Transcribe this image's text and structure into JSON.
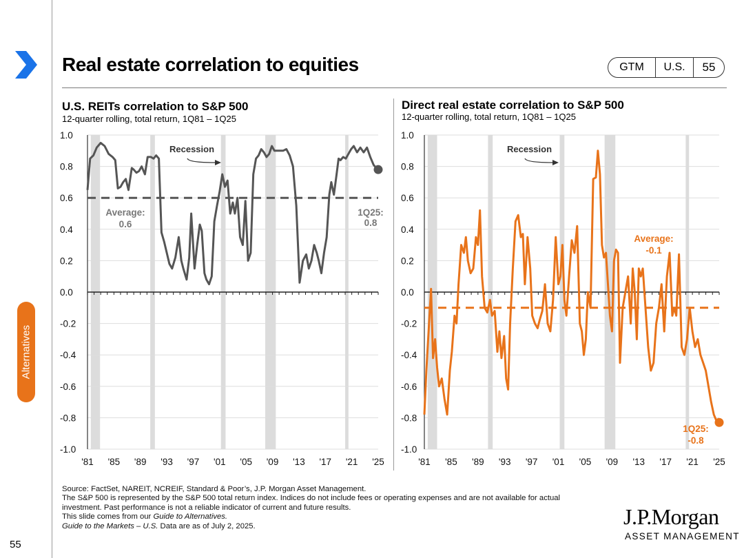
{
  "header": {
    "title": "Real estate correlation to equities",
    "badge": [
      "GTM",
      "U.S.",
      "55"
    ]
  },
  "side_tab": "Alternatives",
  "page_number": "55",
  "colors": {
    "left_line": "#555555",
    "right_line": "#e8731a",
    "recession": "#dcdcdc",
    "accent": "#e8731a"
  },
  "icons": {
    "nav": "chevron-right-icon"
  },
  "chart_data": [
    {
      "type": "line",
      "title": "U.S. REITs correlation to S&P 500",
      "subtitle": "12-quarter rolling, total return, 1Q81 – 1Q25",
      "ylim": [
        -1.0,
        1.0
      ],
      "y_ticks": [
        "1.0",
        "0.8",
        "0.6",
        "0.4",
        "0.2",
        "0.0",
        "-0.2",
        "-0.4",
        "-0.6",
        "-0.8",
        "-1.0"
      ],
      "x_ticks": [
        "'81",
        "'85",
        "'89",
        "'93",
        "'97",
        "'01",
        "'05",
        "'09",
        "'13",
        "'17",
        "'21",
        "'25"
      ],
      "recession_label": "Recession",
      "recessions": [
        [
          1981.5,
          1982.9
        ],
        [
          1990.5,
          1991.2
        ],
        [
          2001.2,
          2001.9
        ],
        [
          2007.9,
          2009.5
        ],
        [
          2020.0,
          2020.5
        ]
      ],
      "average": 0.6,
      "average_label": [
        "Average:",
        "0.6"
      ],
      "end_label": [
        "1Q25:",
        "0.8"
      ],
      "series": [
        {
          "name": "U.S. REITs",
          "color": "#555555",
          "x": [
            1981.0,
            1981.4,
            1981.9,
            1982.4,
            1983.0,
            1983.6,
            1984.2,
            1984.8,
            1985.2,
            1985.6,
            1986.0,
            1986.4,
            1986.8,
            1987.2,
            1987.7,
            1988.0,
            1988.4,
            1988.8,
            1989.2,
            1989.7,
            1990.1,
            1990.6,
            1991.0,
            1991.4,
            1991.8,
            1992.2,
            1992.6,
            1993.0,
            1993.4,
            1993.8,
            1994.3,
            1994.8,
            1995.2,
            1995.5,
            1996.0,
            1996.4,
            1996.7,
            1997.2,
            1997.6,
            1998.0,
            1998.3,
            1998.7,
            1999.0,
            1999.4,
            1999.8,
            2000.2,
            2000.6,
            2001.0,
            2001.4,
            2001.8,
            2002.2,
            2002.6,
            2003.0,
            2003.3,
            2003.7,
            2004.1,
            2004.5,
            2004.9,
            2005.3,
            2005.7,
            2006.1,
            2006.5,
            2006.9,
            2007.3,
            2007.7,
            2008.1,
            2008.5,
            2008.9,
            2009.3,
            2009.7,
            2010.1,
            2010.6,
            2011.1,
            2011.6,
            2012.1,
            2012.6,
            2013.1,
            2013.6,
            2014.1,
            2014.5,
            2014.9,
            2015.3,
            2015.7,
            2016.0,
            2016.4,
            2016.8,
            2017.2,
            2017.6,
            2017.9,
            2018.3,
            2018.7,
            2019.0,
            2019.3,
            2019.7,
            2020.1,
            2020.5,
            2020.9,
            2021.3,
            2021.8,
            2022.3,
            2022.8,
            2023.3,
            2023.8,
            2024.3,
            2024.7,
            2025.0
          ],
          "y": [
            0.65,
            0.85,
            0.87,
            0.92,
            0.95,
            0.93,
            0.88,
            0.86,
            0.84,
            0.66,
            0.67,
            0.7,
            0.72,
            0.65,
            0.79,
            0.78,
            0.76,
            0.77,
            0.8,
            0.75,
            0.86,
            0.86,
            0.85,
            0.87,
            0.85,
            0.38,
            0.32,
            0.25,
            0.18,
            0.15,
            0.22,
            0.35,
            0.2,
            0.15,
            0.08,
            0.22,
            0.5,
            0.15,
            0.3,
            0.43,
            0.39,
            0.12,
            0.08,
            0.05,
            0.1,
            0.45,
            0.55,
            0.64,
            0.75,
            0.67,
            0.71,
            0.5,
            0.57,
            0.5,
            0.6,
            0.35,
            0.3,
            0.58,
            0.2,
            0.25,
            0.75,
            0.85,
            0.87,
            0.91,
            0.89,
            0.86,
            0.88,
            0.93,
            0.9,
            0.9,
            0.9,
            0.9,
            0.91,
            0.87,
            0.8,
            0.55,
            0.06,
            0.2,
            0.24,
            0.15,
            0.2,
            0.3,
            0.25,
            0.2,
            0.12,
            0.25,
            0.35,
            0.62,
            0.7,
            0.62,
            0.75,
            0.85,
            0.84,
            0.86,
            0.85,
            0.88,
            0.91,
            0.93,
            0.89,
            0.92,
            0.89,
            0.92,
            0.86,
            0.81,
            0.79,
            0.78
          ]
        }
      ]
    },
    {
      "type": "line",
      "title": "Direct real estate correlation to S&P 500",
      "subtitle": "12-quarter rolling, total return, 1Q81 – 1Q25",
      "ylim": [
        -1.0,
        1.0
      ],
      "y_ticks": [
        "1.0",
        "0.8",
        "0.6",
        "0.4",
        "0.2",
        "0.0",
        "-0.2",
        "-0.4",
        "-0.6",
        "-0.8",
        "-1.0"
      ],
      "x_ticks": [
        "'81",
        "'85",
        "'89",
        "'93",
        "'97",
        "'01",
        "'05",
        "'09",
        "'13",
        "'17",
        "'21",
        "'25"
      ],
      "recession_label": "Recession",
      "recessions": [
        [
          1981.5,
          1982.9
        ],
        [
          1990.5,
          1991.2
        ],
        [
          2001.2,
          2001.9
        ],
        [
          2007.9,
          2009.5
        ],
        [
          2020.0,
          2020.5
        ]
      ],
      "average": -0.1,
      "average_label": [
        "Average:",
        "-0.1"
      ],
      "end_label": [
        "1Q25:",
        "-0.8"
      ],
      "series": [
        {
          "name": "Direct real estate",
          "color": "#e8731a",
          "x": [
            1981.0,
            1981.3,
            1981.7,
            1982.0,
            1982.3,
            1982.6,
            1982.9,
            1983.2,
            1983.6,
            1984.0,
            1984.4,
            1984.8,
            1985.1,
            1985.5,
            1985.8,
            1986.1,
            1986.5,
            1986.9,
            1987.2,
            1987.5,
            1987.9,
            1988.3,
            1988.7,
            1989.0,
            1989.3,
            1989.6,
            1990.0,
            1990.4,
            1990.8,
            1991.1,
            1991.5,
            1991.9,
            1992.2,
            1992.5,
            1992.9,
            1993.2,
            1993.5,
            1993.8,
            1994.2,
            1994.6,
            1995.0,
            1995.4,
            1995.7,
            1996.0,
            1996.4,
            1996.8,
            1997.1,
            1997.5,
            1997.9,
            1998.2,
            1998.6,
            1999.0,
            1999.4,
            1999.8,
            2000.2,
            2000.6,
            2001.0,
            2001.3,
            2001.6,
            2001.9,
            2002.2,
            2002.6,
            2003.0,
            2003.4,
            2003.8,
            2004.2,
            2004.5,
            2004.8,
            2005.1,
            2005.4,
            2005.8,
            2006.2,
            2006.6,
            2006.9,
            2007.2,
            2007.5,
            2007.8,
            2008.1,
            2008.4,
            2008.7,
            2009.0,
            2009.3,
            2009.6,
            2009.9,
            2010.2,
            2010.6,
            2011.0,
            2011.4,
            2011.8,
            2012.1,
            2012.4,
            2012.7,
            2013.0,
            2013.3,
            2013.6,
            2014.0,
            2014.4,
            2014.8,
            2015.2,
            2015.6,
            2016.0,
            2016.4,
            2016.8,
            2017.2,
            2017.6,
            2018.0,
            2018.3,
            2018.6,
            2019.0,
            2019.4,
            2019.8,
            2020.2,
            2020.6,
            2021.0,
            2021.4,
            2021.8,
            2022.2,
            2022.6,
            2023.0,
            2023.4,
            2023.8,
            2024.2,
            2024.6,
            2025.0
          ],
          "y": [
            -0.78,
            -0.5,
            -0.2,
            0.02,
            -0.42,
            -0.3,
            -0.48,
            -0.6,
            -0.55,
            -0.68,
            -0.78,
            -0.5,
            -0.38,
            -0.15,
            -0.2,
            0.05,
            0.3,
            0.25,
            0.35,
            0.2,
            0.12,
            0.15,
            0.35,
            0.3,
            0.52,
            0.1,
            -0.1,
            -0.13,
            -0.05,
            -0.15,
            -0.12,
            -0.38,
            -0.25,
            -0.42,
            -0.28,
            -0.55,
            -0.62,
            -0.2,
            0.15,
            0.45,
            0.49,
            0.35,
            0.37,
            0.05,
            0.35,
            0.15,
            -0.15,
            -0.2,
            -0.23,
            -0.18,
            -0.12,
            0.05,
            -0.2,
            -0.25,
            -0.05,
            0.35,
            0.05,
            0.1,
            0.3,
            -0.05,
            -0.15,
            0.1,
            0.33,
            0.25,
            0.42,
            -0.2,
            -0.25,
            -0.4,
            -0.3,
            0.0,
            -0.1,
            0.72,
            0.73,
            0.9,
            0.75,
            0.3,
            0.22,
            0.25,
            0.05,
            -0.15,
            -0.25,
            0.2,
            0.27,
            0.25,
            -0.45,
            -0.1,
            0.0,
            0.1,
            -0.2,
            0.15,
            0.0,
            -0.3,
            0.15,
            0.1,
            0.15,
            -0.1,
            -0.35,
            -0.5,
            -0.45,
            -0.2,
            -0.1,
            0.05,
            -0.25,
            0.1,
            0.25,
            -0.15,
            -0.1,
            -0.15,
            0.24,
            -0.35,
            -0.4,
            -0.3,
            -0.1,
            -0.25,
            -0.35,
            -0.3,
            -0.4,
            -0.45,
            -0.5,
            -0.6,
            -0.7,
            -0.78,
            -0.82,
            -0.83
          ]
        }
      ]
    }
  ],
  "footer": {
    "source": "Source: FactSet, NAREIT, NCREIF, Standard & Poor’s, J.P. Morgan Asset Management.",
    "note1": "The S&P 500 is represented by the S&P 500 total return index. Indices do not include fees or operating expenses and are not available for actual",
    "note2": "investment. Past performance is not a reliable indicator of current and future results.",
    "note3_prefix": "This slide comes from our ",
    "note3_italic": "Guide to Alternatives.",
    "note4_italic": "Guide to the Markets – U.S.",
    "note4_rest": " Data are as of July 2, 2025."
  },
  "brand": {
    "name": "J.P.Morgan",
    "sub": "ASSET MANAGEMENT"
  }
}
